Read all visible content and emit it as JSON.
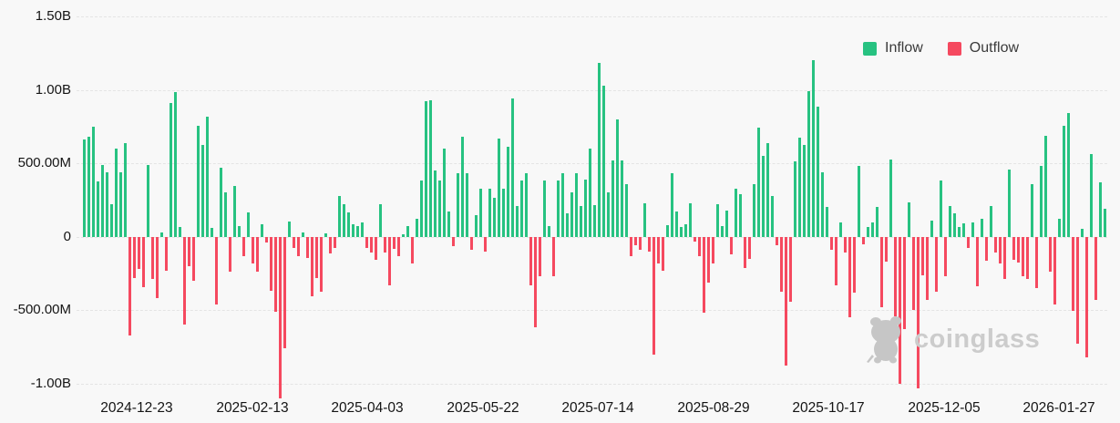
{
  "chart_data": {
    "type": "bar",
    "title": "",
    "unit_note": "values in millions USD; positive bars = Inflow (green), negative bars = Outflow (red)",
    "ylim": [
      -1150,
      1500
    ],
    "grid": "horizontal-dashed",
    "legend_position": "top-right",
    "legend": [
      {
        "label": "Inflow",
        "color": "#27c281"
      },
      {
        "label": "Outflow",
        "color": "#f5495f"
      }
    ],
    "y_ticks": [
      {
        "value": 1500,
        "label": "1.50B"
      },
      {
        "value": 1000,
        "label": "1.00B"
      },
      {
        "value": 500,
        "label": "500.00M"
      },
      {
        "value": 0,
        "label": "0"
      },
      {
        "value": -500,
        "label": "-500.00M"
      },
      {
        "value": -1000,
        "label": "-1.00B"
      }
    ],
    "x_tick_labels": [
      "2024-12-23",
      "2025-02-13",
      "2025-04-03",
      "2025-05-22",
      "2025-07-14",
      "2025-08-29",
      "2025-10-17",
      "2025-12-05",
      "2026-01-27"
    ],
    "x_tick_positions_pct": [
      5.33,
      16.62,
      27.82,
      39.11,
      50.31,
      61.6,
      72.8,
      84.09,
      95.29
    ],
    "values": [
      660,
      680,
      750,
      375,
      490,
      437,
      220,
      600,
      437,
      640,
      -670,
      -280,
      -220,
      -345,
      490,
      -290,
      -420,
      30,
      -230,
      910,
      985,
      65,
      -600,
      -200,
      -300,
      755,
      625,
      820,
      60,
      -460,
      470,
      300,
      -240,
      345,
      75,
      -135,
      165,
      -180,
      -240,
      85,
      -40,
      -365,
      -510,
      -1100,
      -760,
      105,
      -75,
      -135,
      30,
      -145,
      -405,
      -280,
      -375,
      20,
      -115,
      -75,
      280,
      220,
      165,
      85,
      75,
      95,
      -75,
      -105,
      -155,
      220,
      -110,
      -330,
      -85,
      -130,
      15,
      75,
      -180,
      120,
      380,
      920,
      930,
      450,
      380,
      600,
      170,
      -65,
      430,
      680,
      430,
      -90,
      145,
      330,
      -100,
      330,
      265,
      670,
      330,
      610,
      940,
      210,
      385,
      430,
      -330,
      -615,
      -270,
      380,
      75,
      -270,
      380,
      430,
      160,
      300,
      430,
      210,
      390,
      600,
      215,
      1185,
      1030,
      300,
      520,
      800,
      520,
      360,
      -130,
      -60,
      -90,
      230,
      -100,
      -800,
      -180,
      -230,
      80,
      430,
      175,
      65,
      85,
      230,
      -30,
      -130,
      -520,
      -310,
      -180,
      220,
      75,
      180,
      -120,
      330,
      290,
      -215,
      -150,
      360,
      740,
      550,
      640,
      280,
      -55,
      -375,
      -875,
      -440,
      515,
      675,
      625,
      990,
      1200,
      885,
      437,
      200,
      -90,
      -330,
      95,
      -110,
      -550,
      -380,
      480,
      -50,
      65,
      95,
      200,
      -480,
      -170,
      525,
      -540,
      -1000,
      -630,
      235,
      -500,
      -1030,
      -260,
      -430,
      110,
      -375,
      385,
      -270,
      210,
      160,
      65,
      90,
      -75,
      95,
      -340,
      125,
      -165,
      210,
      -105,
      -180,
      -290,
      455,
      -160,
      -175,
      -270,
      -290,
      355,
      -350,
      480,
      690,
      -240,
      -460,
      120,
      756,
      845,
      -505,
      -730,
      55,
      -820,
      565,
      -430,
      368,
      190
    ]
  },
  "legend": {
    "inflow_label": "Inflow",
    "outflow_label": "Outflow"
  },
  "watermark": {
    "text": "coinglass"
  },
  "colors": {
    "inflow": "#27c281",
    "outflow": "#f5495f",
    "background": "#f8f8f8",
    "grid": "#e4e4e4",
    "axis_text": "#141414",
    "watermark": "#cccccc"
  }
}
